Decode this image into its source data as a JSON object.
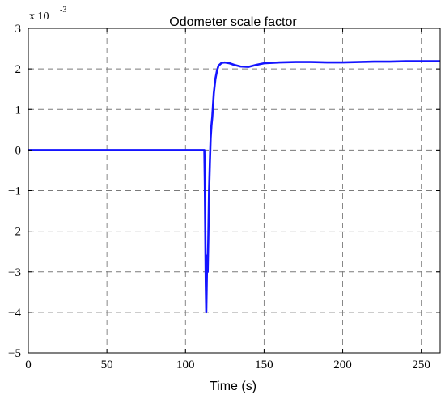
{
  "chart_data": {
    "type": "line",
    "title": "Odometer scale factor",
    "xlabel": "Time (s)",
    "ylabel": "",
    "y_exponent_label": "x 10",
    "y_exponent_power": "-3",
    "xlim": [
      0,
      262
    ],
    "ylim": [
      -5,
      3
    ],
    "xticks": [
      0,
      50,
      100,
      150,
      200,
      250
    ],
    "yticks": [
      3,
      2,
      1,
      0,
      -1,
      -2,
      -3,
      -4,
      -5
    ],
    "grid": true,
    "line_color": "#1414ff",
    "series": [
      {
        "points": [
          [
            0,
            0
          ],
          [
            50,
            0
          ],
          [
            100,
            0
          ],
          [
            111,
            0
          ],
          [
            112,
            0
          ],
          [
            112.3,
            -0.8
          ],
          [
            112.6,
            -2.0
          ],
          [
            112.9,
            -3.3
          ],
          [
            113.2,
            -4.0
          ],
          [
            113.5,
            -3.3
          ],
          [
            113.8,
            -2.6
          ],
          [
            114.1,
            -3.0
          ],
          [
            114.5,
            -2.2
          ],
          [
            115,
            -1.0
          ],
          [
            115.5,
            -0.3
          ],
          [
            116,
            0.3
          ],
          [
            116.5,
            0.6
          ],
          [
            117,
            0.8
          ],
          [
            117.5,
            1.1
          ],
          [
            118,
            1.4
          ],
          [
            119,
            1.75
          ],
          [
            120,
            1.95
          ],
          [
            121,
            2.08
          ],
          [
            123,
            2.15
          ],
          [
            125,
            2.16
          ],
          [
            128,
            2.14
          ],
          [
            131,
            2.1
          ],
          [
            135,
            2.06
          ],
          [
            140,
            2.05
          ],
          [
            145,
            2.1
          ],
          [
            150,
            2.14
          ],
          [
            160,
            2.16
          ],
          [
            170,
            2.17
          ],
          [
            180,
            2.17
          ],
          [
            190,
            2.16
          ],
          [
            200,
            2.16
          ],
          [
            210,
            2.17
          ],
          [
            220,
            2.18
          ],
          [
            230,
            2.18
          ],
          [
            240,
            2.19
          ],
          [
            250,
            2.19
          ],
          [
            262,
            2.19
          ]
        ]
      }
    ]
  }
}
